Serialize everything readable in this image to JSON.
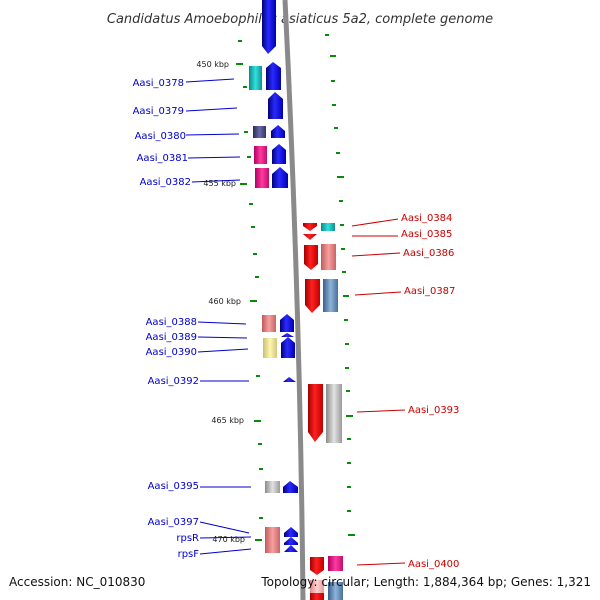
{
  "title": "Candidatus Amoebophilus asiaticus 5a2, complete genome",
  "colors": {
    "forward_label": "#0000cc",
    "reverse_label": "#cc0000",
    "tick": "#0a8a0a",
    "backbone": "#8a8a8a"
  },
  "kbp_markers": [
    "450 kbp",
    "455 kbp",
    "460 kbp",
    "465 kbp",
    "470 kbp"
  ],
  "left_genes": [
    "Aasi_0378",
    "Aasi_0379",
    "Aasi_0380",
    "Aasi_0381",
    "Aasi_0382",
    "Aasi_0388",
    "Aasi_0389",
    "Aasi_0390",
    "Aasi_0392",
    "Aasi_0395",
    "Aasi_0397",
    "rpsR",
    "rpsF"
  ],
  "right_genes": [
    "Aasi_0384",
    "Aasi_0385",
    "Aasi_0386",
    "Aasi_0387",
    "Aasi_0393",
    "Aasi_0400"
  ],
  "footer": {
    "accession": "Accession: NC_010830",
    "summary": "Topology: circular; Length: 1,884,364 bp; Genes: 1,321"
  }
}
